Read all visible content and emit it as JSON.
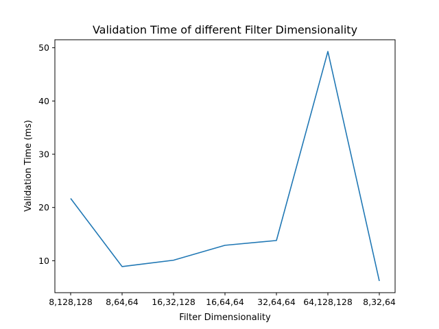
{
  "chart_data": {
    "type": "line",
    "title": "Validation Time of different Filter Dimensionality",
    "xlabel": "Filter Dimensionality",
    "ylabel": "Validation Time (ms)",
    "categories": [
      "8,128,128",
      "8,64,64",
      "16,32,128",
      "16,64,64",
      "32,64,64",
      "64,128,128",
      "8,32,64"
    ],
    "values": [
      21.7,
      8.9,
      10.1,
      12.9,
      13.8,
      49.3,
      6.2
    ],
    "ylim": [
      4.0,
      51.5
    ],
    "yticks": [
      10,
      20,
      30,
      40,
      50
    ],
    "grid": false,
    "line_color": "#1f77b4"
  }
}
